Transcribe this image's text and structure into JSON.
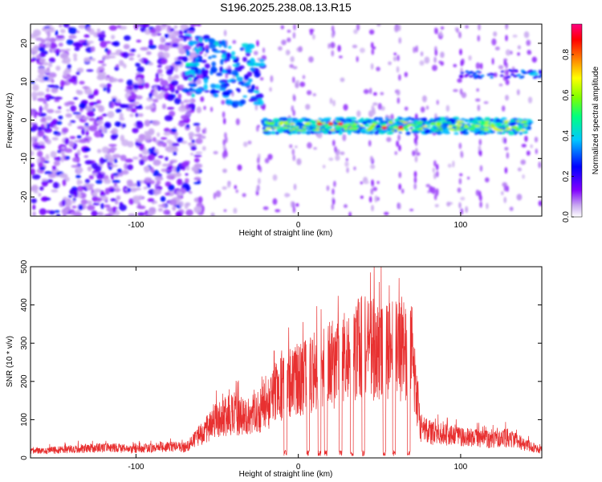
{
  "figure_title": "S196.2025.238.08.13.R15",
  "chart_data": [
    {
      "type": "heatmap",
      "title": "S196.2025.238.08.13.R15",
      "xlabel": "Height of straight line (km)",
      "ylabel": "Frequency (Hz)",
      "xlim": [
        -165,
        150
      ],
      "ylim": [
        -25,
        25
      ],
      "xticks": [
        -100,
        0,
        100
      ],
      "yticks": [
        -20,
        -10,
        0,
        10,
        20
      ],
      "colorbar": {
        "label": "Normalized spectral amplitude",
        "range": [
          0.0,
          0.95
        ],
        "ticks": [
          0.0,
          0.2,
          0.4,
          0.6,
          0.8
        ],
        "colors": [
          "#ffffff",
          "#c8a8f0",
          "#8000ff",
          "#0000ff",
          "#00c8ff",
          "#00ff80",
          "#80ff00",
          "#ffff00",
          "#ff8000",
          "#ff0000",
          "#ff0080"
        ]
      },
      "features": [
        {
          "name": "background noise",
          "x_range": [
            -165,
            -60
          ],
          "freq_range": [
            -25,
            25
          ],
          "amplitude": 0.15
        },
        {
          "name": "upper signal band",
          "x_range": [
            -70,
            -22
          ],
          "freq_center": 14,
          "amplitude": 0.45
        },
        {
          "name": "main signal band",
          "x_range": [
            -22,
            143
          ],
          "freq_center": -1.5,
          "amplitude": 0.9
        },
        {
          "name": "upper right band",
          "x_range": [
            100,
            150
          ],
          "freq_center": 12,
          "amplitude": 0.3
        }
      ]
    },
    {
      "type": "line",
      "xlabel": "Height of straight line (km)",
      "ylabel": "SNR (10 * v/v)",
      "xlim": [
        -165,
        150
      ],
      "ylim": [
        0,
        500
      ],
      "xticks": [
        -100,
        0,
        100
      ],
      "yticks": [
        0,
        100,
        200,
        300,
        400,
        500
      ],
      "color": "#e83030",
      "envelope": {
        "x": [
          -165,
          -150,
          -140,
          -120,
          -100,
          -80,
          -70,
          -60,
          -50,
          -40,
          -30,
          -20,
          -10,
          0,
          10,
          20,
          30,
          40,
          50,
          60,
          70,
          75,
          80,
          90,
          100,
          110,
          120,
          130,
          140,
          150
        ],
        "values": [
          25,
          30,
          35,
          40,
          35,
          45,
          40,
          90,
          150,
          170,
          160,
          200,
          280,
          300,
          330,
          360,
          390,
          430,
          410,
          420,
          400,
          120,
          100,
          90,
          80,
          75,
          70,
          80,
          50,
          30
        ]
      },
      "dropouts_x": [
        -8,
        6,
        13,
        17,
        26,
        33,
        40,
        53,
        59,
        68
      ]
    }
  ]
}
